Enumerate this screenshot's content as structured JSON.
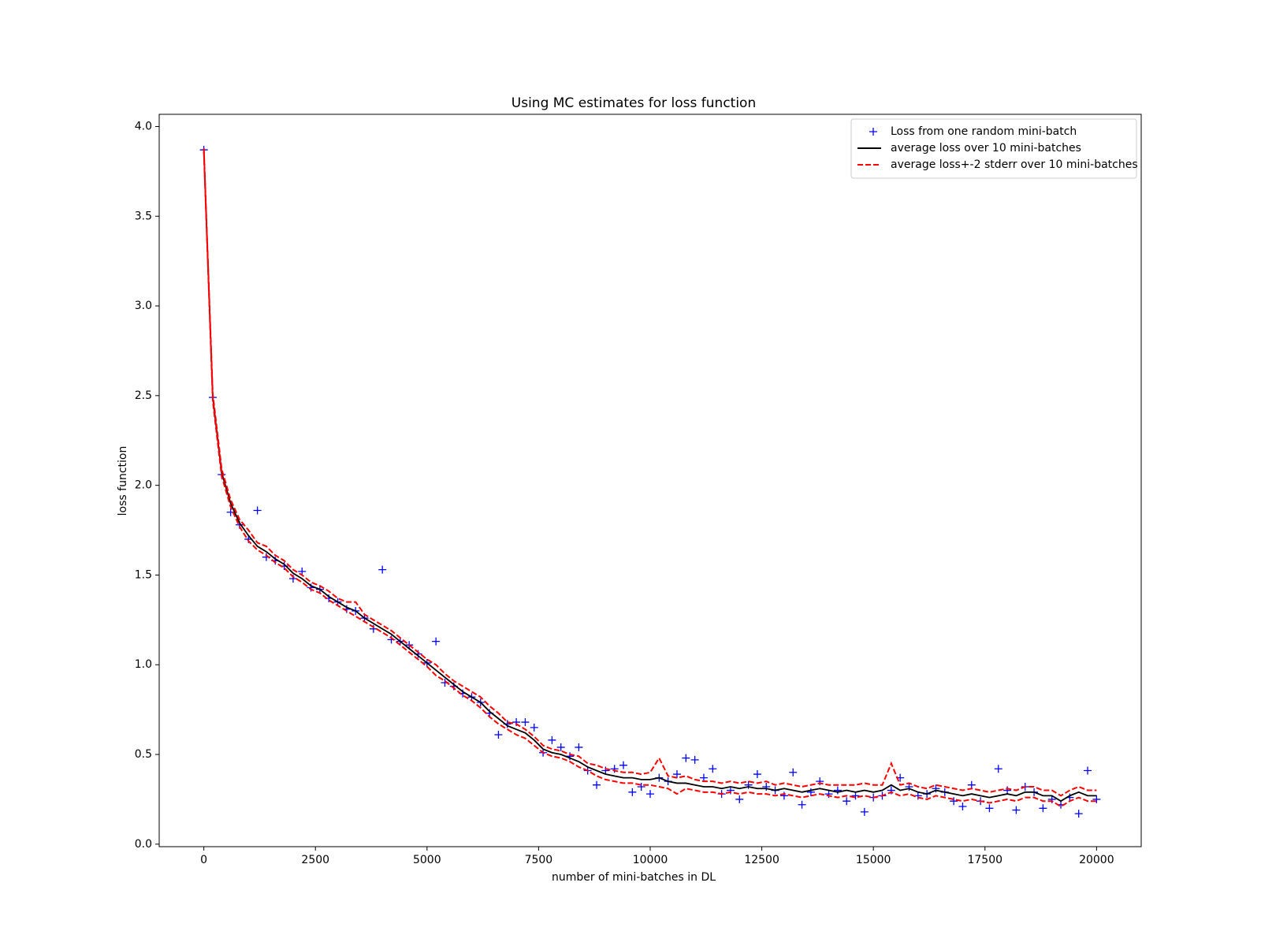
{
  "chart_data": {
    "type": "line",
    "title": "Using MC estimates for loss function",
    "xlabel": "number of mini-batches in DL",
    "ylabel": "loss function",
    "xlim": [
      -1000,
      21000
    ],
    "ylim": [
      -0.014,
      4.068
    ],
    "xticks": [
      0,
      2500,
      5000,
      7500,
      10000,
      12500,
      15000,
      17500,
      20000
    ],
    "yticks": [
      {
        "value": 0,
        "label": "0.0"
      },
      0.5,
      {
        "value": 1,
        "label": "1.0"
      },
      1.5,
      {
        "value": 2,
        "label": "2.0"
      },
      2.5,
      {
        "value": 3,
        "label": "3.0"
      },
      3.5,
      {
        "value": 4,
        "label": "4.0"
      }
    ],
    "legend": "upper right",
    "x": [
      0,
      200,
      400,
      600,
      800,
      1000,
      1200,
      1400,
      1600,
      1800,
      2000,
      2200,
      2400,
      2600,
      2800,
      3000,
      3200,
      3400,
      3600,
      3800,
      4000,
      4200,
      4400,
      4600,
      4800,
      5000,
      5200,
      5400,
      5600,
      5800,
      6000,
      6200,
      6400,
      6600,
      6800,
      7000,
      7200,
      7400,
      7600,
      7800,
      8000,
      8200,
      8400,
      8600,
      8800,
      9000,
      9200,
      9400,
      9600,
      9800,
      10000,
      10200,
      10400,
      10600,
      10800,
      11000,
      11200,
      11400,
      11600,
      11800,
      12000,
      12200,
      12400,
      12600,
      12800,
      13000,
      13200,
      13400,
      13600,
      13800,
      14000,
      14200,
      14400,
      14600,
      14800,
      15000,
      15200,
      15400,
      15600,
      15800,
      16000,
      16200,
      16400,
      16600,
      16800,
      17000,
      17200,
      17400,
      17600,
      17800,
      18000,
      18200,
      18400,
      18600,
      18800,
      19000,
      19200,
      19400,
      19600,
      19800,
      20000
    ],
    "series": [
      {
        "name": "Loss from one random mini-batch",
        "kind": "scatter",
        "color": "#0000ff",
        "values": [
          3.87,
          2.49,
          2.06,
          1.85,
          1.78,
          1.7,
          1.86,
          1.6,
          1.58,
          1.55,
          1.48,
          1.52,
          1.43,
          1.42,
          1.37,
          1.35,
          1.31,
          1.3,
          1.26,
          1.2,
          1.53,
          1.14,
          1.13,
          1.11,
          1.06,
          1.01,
          1.13,
          0.9,
          0.88,
          0.84,
          0.82,
          0.79,
          0.73,
          0.61,
          0.67,
          0.68,
          0.68,
          0.65,
          0.51,
          0.58,
          0.54,
          0.49,
          0.54,
          0.41,
          0.33,
          0.41,
          0.42,
          0.44,
          0.29,
          0.32,
          0.28,
          0.37,
          0.35,
          0.39,
          0.48,
          0.47,
          0.37,
          0.42,
          0.28,
          0.3,
          0.25,
          0.33,
          0.39,
          0.32,
          0.3,
          0.27,
          0.4,
          0.22,
          0.29,
          0.35,
          0.28,
          0.3,
          0.24,
          0.27,
          0.18,
          0.26,
          0.27,
          0.3,
          0.37,
          0.32,
          0.27,
          0.28,
          0.31,
          0.29,
          0.24,
          0.21,
          0.33,
          0.24,
          0.2,
          0.42,
          0.3,
          0.19,
          0.32,
          0.29,
          0.2,
          0.25,
          0.22,
          0.26,
          0.17,
          0.41,
          0.25
        ]
      },
      {
        "name": "average loss over 10 mini-batches",
        "kind": "line",
        "color": "#000000",
        "values": [
          3.87,
          2.49,
          2.07,
          1.9,
          1.79,
          1.72,
          1.66,
          1.63,
          1.59,
          1.56,
          1.51,
          1.48,
          1.44,
          1.42,
          1.38,
          1.35,
          1.32,
          1.3,
          1.26,
          1.23,
          1.2,
          1.17,
          1.13,
          1.09,
          1.05,
          1.01,
          0.97,
          0.93,
          0.89,
          0.85,
          0.82,
          0.79,
          0.74,
          0.7,
          0.66,
          0.64,
          0.62,
          0.58,
          0.53,
          0.51,
          0.5,
          0.48,
          0.46,
          0.43,
          0.41,
          0.39,
          0.38,
          0.37,
          0.37,
          0.36,
          0.36,
          0.37,
          0.35,
          0.34,
          0.34,
          0.33,
          0.32,
          0.32,
          0.31,
          0.32,
          0.31,
          0.32,
          0.31,
          0.31,
          0.3,
          0.31,
          0.3,
          0.29,
          0.3,
          0.31,
          0.3,
          0.29,
          0.3,
          0.29,
          0.3,
          0.29,
          0.3,
          0.33,
          0.3,
          0.31,
          0.29,
          0.28,
          0.3,
          0.29,
          0.28,
          0.27,
          0.28,
          0.27,
          0.26,
          0.27,
          0.28,
          0.27,
          0.29,
          0.29,
          0.27,
          0.27,
          0.24,
          0.27,
          0.29,
          0.27,
          0.27
        ]
      },
      {
        "name": "average loss+-2 stderr over 10 mini-batches",
        "kind": "dashed",
        "color": "#ff0000",
        "values": [
          3.88,
          2.51,
          2.09,
          1.92,
          1.81,
          1.75,
          1.68,
          1.66,
          1.61,
          1.58,
          1.53,
          1.5,
          1.46,
          1.44,
          1.41,
          1.37,
          1.35,
          1.35,
          1.28,
          1.25,
          1.22,
          1.19,
          1.15,
          1.11,
          1.07,
          1.03,
          1.0,
          0.95,
          0.91,
          0.88,
          0.85,
          0.82,
          0.77,
          0.73,
          0.68,
          0.67,
          0.64,
          0.6,
          0.55,
          0.53,
          0.52,
          0.5,
          0.49,
          0.45,
          0.44,
          0.42,
          0.41,
          0.4,
          0.4,
          0.39,
          0.4,
          0.48,
          0.38,
          0.37,
          0.38,
          0.36,
          0.35,
          0.35,
          0.34,
          0.35,
          0.34,
          0.35,
          0.34,
          0.35,
          0.33,
          0.34,
          0.33,
          0.32,
          0.33,
          0.34,
          0.33,
          0.33,
          0.33,
          0.33,
          0.34,
          0.33,
          0.33,
          0.45,
          0.33,
          0.34,
          0.32,
          0.31,
          0.33,
          0.32,
          0.31,
          0.3,
          0.31,
          0.3,
          0.29,
          0.3,
          0.31,
          0.3,
          0.32,
          0.32,
          0.3,
          0.3,
          0.27,
          0.3,
          0.32,
          0.3,
          0.3
        ]
      },
      {
        "kind": "dashed",
        "color": "#ff0000",
        "values": [
          3.86,
          2.47,
          2.05,
          1.88,
          1.77,
          1.69,
          1.64,
          1.61,
          1.57,
          1.54,
          1.49,
          1.46,
          1.42,
          1.4,
          1.36,
          1.33,
          1.3,
          1.27,
          1.24,
          1.21,
          1.18,
          1.15,
          1.11,
          1.07,
          1.03,
          0.99,
          0.94,
          0.91,
          0.87,
          0.83,
          0.8,
          0.76,
          0.71,
          0.67,
          0.64,
          0.61,
          0.59,
          0.55,
          0.51,
          0.49,
          0.48,
          0.46,
          0.43,
          0.41,
          0.38,
          0.36,
          0.35,
          0.34,
          0.34,
          0.33,
          0.33,
          0.32,
          0.31,
          0.28,
          0.31,
          0.3,
          0.29,
          0.29,
          0.28,
          0.29,
          0.28,
          0.29,
          0.28,
          0.28,
          0.27,
          0.28,
          0.27,
          0.26,
          0.27,
          0.28,
          0.27,
          0.26,
          0.27,
          0.26,
          0.27,
          0.26,
          0.27,
          0.29,
          0.27,
          0.28,
          0.26,
          0.25,
          0.27,
          0.26,
          0.25,
          0.24,
          0.25,
          0.24,
          0.23,
          0.24,
          0.25,
          0.24,
          0.26,
          0.26,
          0.24,
          0.24,
          0.21,
          0.24,
          0.26,
          0.24,
          0.24
        ]
      }
    ]
  }
}
